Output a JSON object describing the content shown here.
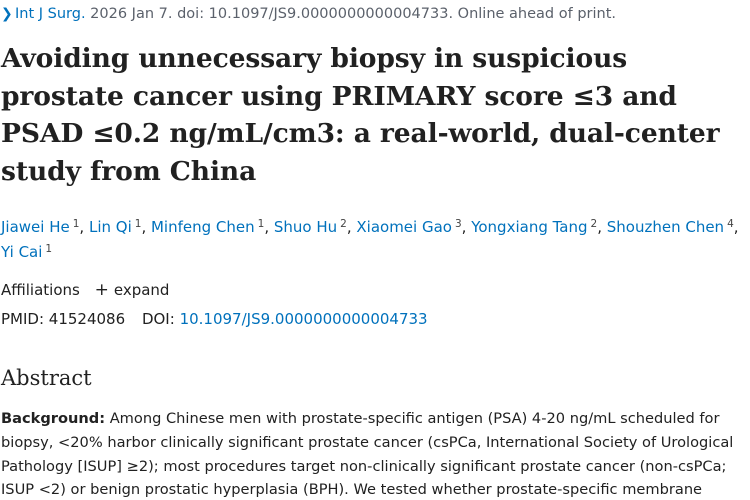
{
  "citation": {
    "chevron_icon": "chevron-right-icon",
    "journal": "Int J Surg.",
    "details": " 2026 Jan 7. doi: 10.1097/JS9.0000000000004733. Online ahead of print."
  },
  "title": "Avoiding unnecessary biopsy in suspicious prostate cancer using PRIMARY score ≤3 and PSAD ≤0.2 ng/mL/cm3: a real-world, dual-center study from China",
  "authors": [
    {
      "name": "Jiawei He",
      "aff": "1"
    },
    {
      "name": "Lin Qi",
      "aff": "1"
    },
    {
      "name": "Minfeng Chen",
      "aff": "1"
    },
    {
      "name": "Shuo Hu",
      "aff": "2"
    },
    {
      "name": "Xiaomei Gao",
      "aff": "3"
    },
    {
      "name": "Yongxiang Tang",
      "aff": "2"
    },
    {
      "name": "Shouzhen Chen",
      "aff": "4"
    },
    {
      "name": "Yi Cai",
      "aff": "1"
    }
  ],
  "affiliations": {
    "label": "Affiliations",
    "expand_label": "expand"
  },
  "identifiers": {
    "pmid_label": "PMID:",
    "pmid": "41524086",
    "doi_label": "DOI:",
    "doi": "10.1097/JS9.0000000000004733"
  },
  "abstract": {
    "heading": "Abstract",
    "background_label": "Background:",
    "background_text": " Among Chinese men with prostate-specific antigen (PSA) 4-20 ng/mL scheduled for biopsy, <20% harbor clinically significant prostate cancer (csPCa, International Society of Urological Pathology [ISUP] ≥2); most procedures target non-clinically significant prostate cancer (non-csPCa; ISUP <2) or benign prostatic hyperplasia (BPH). We tested whether prostate-specific membrane"
  },
  "colors": {
    "link": "#0071bc",
    "text": "#212121",
    "muted": "#5b616b"
  }
}
